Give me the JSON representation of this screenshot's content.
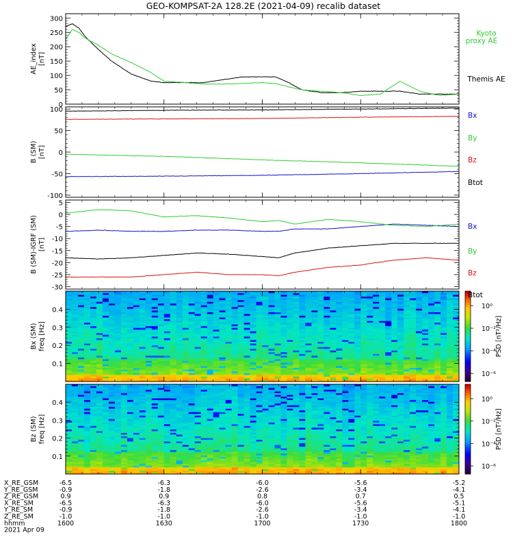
{
  "title": "GEO-KOMPSAT-2A 128.2E (2021-04-09) recalib dataset",
  "colors": {
    "black": "#000000",
    "green": "#2ecc2e",
    "red": "#dd1111",
    "blue": "#1111cc"
  },
  "chart_data": [
    {
      "type": "line",
      "ylabel": [
        "AE_index",
        "[nT]"
      ],
      "yticks": [
        0,
        50,
        100,
        150,
        200,
        250,
        300
      ],
      "ylim": [
        0,
        315
      ],
      "x": [
        1600,
        1602,
        1604,
        1606,
        1610,
        1614,
        1620,
        1626,
        1630,
        1636,
        1642,
        1648,
        1654,
        1700,
        1704,
        1708,
        1712,
        1718,
        1724,
        1730,
        1736,
        1742,
        1748,
        1754,
        1800
      ],
      "series": [
        {
          "name": "Themis AE",
          "color": "#000000",
          "values": [
            270,
            280,
            265,
            235,
            190,
            150,
            105,
            80,
            75,
            75,
            75,
            85,
            95,
            95,
            95,
            75,
            50,
            40,
            40,
            45,
            45,
            45,
            35,
            35,
            35
          ]
        },
        {
          "name": "Kyoto proxy AE",
          "color": "#2ecc2e",
          "values": [
            225,
            260,
            250,
            230,
            205,
            175,
            145,
            110,
            80,
            75,
            70,
            70,
            72,
            75,
            72,
            60,
            50,
            45,
            40,
            30,
            35,
            80,
            45,
            30,
            35
          ]
        }
      ]
    },
    {
      "type": "line",
      "ylabel": [
        "B (SM)",
        "[nT]"
      ],
      "yticks": [
        -100,
        -50,
        0,
        50,
        100
      ],
      "ylim": [
        -105,
        105
      ],
      "x": [
        1600,
        1630,
        1700,
        1730,
        1800
      ],
      "series": [
        {
          "name": "Bx",
          "color": "#1111cc",
          "values": [
            -57,
            -56,
            -54,
            -50,
            -45
          ]
        },
        {
          "name": "By",
          "color": "#2ecc2e",
          "values": [
            -5,
            -10,
            -18,
            -25,
            -33
          ]
        },
        {
          "name": "Bz",
          "color": "#dd1111",
          "values": [
            76,
            77,
            78,
            81,
            83
          ]
        },
        {
          "name": "Btot",
          "color": "#000000",
          "values": [
            95,
            97,
            98,
            100,
            102
          ]
        }
      ]
    },
    {
      "type": "line",
      "ylabel": [
        "B (SM)-IGRF (SM)",
        "[nT]"
      ],
      "yticks": [
        -30,
        -25,
        -20,
        -15,
        -10,
        -5,
        0,
        5
      ],
      "ylim": [
        -31,
        6
      ],
      "x": [
        1600,
        1610,
        1620,
        1630,
        1640,
        1650,
        1700,
        1705,
        1710,
        1720,
        1730,
        1740,
        1750,
        1800
      ],
      "series": [
        {
          "name": "Bx",
          "color": "#1111cc",
          "values": [
            -7,
            -6.5,
            -7,
            -7,
            -6.5,
            -6.5,
            -7,
            -7,
            -6,
            -6,
            -5,
            -4,
            -4.5,
            -5
          ]
        },
        {
          "name": "By",
          "color": "#2ecc2e",
          "values": [
            0.5,
            2,
            1.5,
            -1,
            -0.5,
            -1.5,
            -3,
            -2.5,
            -4,
            -2,
            -3,
            -4.5,
            -5,
            -4
          ]
        },
        {
          "name": "Bz",
          "color": "#dd1111",
          "values": [
            -26,
            -26,
            -26,
            -25,
            -24,
            -25,
            -25,
            -25.5,
            -24,
            -22,
            -21,
            -19,
            -18,
            -19
          ]
        },
        {
          "name": "Btot",
          "color": "#000000",
          "values": [
            -18,
            -18.5,
            -18,
            -17,
            -16,
            -16.5,
            -17.5,
            -18,
            -16,
            -14,
            -13,
            -12,
            -12,
            -12
          ]
        }
      ]
    },
    {
      "type": "heatmap",
      "ylabel": [
        "Bx (SM)",
        "freq [Hz]"
      ],
      "yticks": [
        0.1,
        0.2,
        0.3,
        0.4
      ],
      "ylim": [
        0,
        0.5
      ],
      "colorbar": {
        "label": "PSD [nT²/Hz]",
        "ticks": [
          "10⁰",
          "10⁻²",
          "10⁻⁴",
          "10⁻⁶"
        ]
      }
    },
    {
      "type": "heatmap",
      "ylabel": [
        "Bz (SM)",
        "freq [Hz]"
      ],
      "yticks": [
        0.1,
        0.2,
        0.3,
        0.4
      ],
      "ylim": [
        0,
        0.5
      ],
      "colorbar": {
        "label": "PSD [nT²/Hz]",
        "ticks": [
          "10⁰",
          "10⁻²",
          "10⁻⁴",
          "10⁻⁶"
        ]
      }
    }
  ],
  "side_labels": [
    [
      {
        "text": "Kyoto",
        "color": "#2ecc2e"
      },
      {
        "text": "proxy AE",
        "color": "#2ecc2e"
      },
      {
        "text": "Themis AE",
        "color": "#000000"
      }
    ],
    [
      {
        "text": "Bx",
        "color": "#1111cc"
      },
      {
        "text": "By",
        "color": "#2ecc2e"
      },
      {
        "text": "Bz",
        "color": "#dd1111"
      },
      {
        "text": "Btot",
        "color": "#000000"
      }
    ],
    [
      {
        "text": "Bx",
        "color": "#1111cc"
      },
      {
        "text": "By",
        "color": "#2ecc2e"
      },
      {
        "text": "Bz",
        "color": "#dd1111"
      },
      {
        "text": "Btot",
        "color": "#000000"
      }
    ]
  ],
  "ephemeris": {
    "rows": [
      {
        "label": "X_RE_GSM",
        "values": [
          "-6.5",
          "-6.3",
          "-6.0",
          "-5.6",
          "-5.2"
        ]
      },
      {
        "label": "Y_RE_GSM",
        "values": [
          "-0.9",
          "-1.8",
          "-2.6",
          "-3.4",
          "-4.1"
        ]
      },
      {
        "label": "Z_RE_GSM",
        "values": [
          "0.9",
          "0.9",
          "0.8",
          "0.7",
          "0.5"
        ]
      },
      {
        "label": "X_RE_SM",
        "values": [
          "-6.5",
          "-6.3",
          "-6.0",
          "-5.6",
          "-5.1"
        ]
      },
      {
        "label": "Y_RE_SM",
        "values": [
          "-0.9",
          "-1.8",
          "-2.6",
          "-3.4",
          "-4.1"
        ]
      },
      {
        "label": "Z_RE_SM",
        "values": [
          "-1.0",
          "-1.0",
          "-1.0",
          "-1.0",
          "-1.0"
        ]
      },
      {
        "label": "hhmm",
        "values": [
          "1600",
          "1630",
          "1700",
          "1730",
          "1800"
        ]
      }
    ],
    "date": "2021 Apr 09"
  }
}
